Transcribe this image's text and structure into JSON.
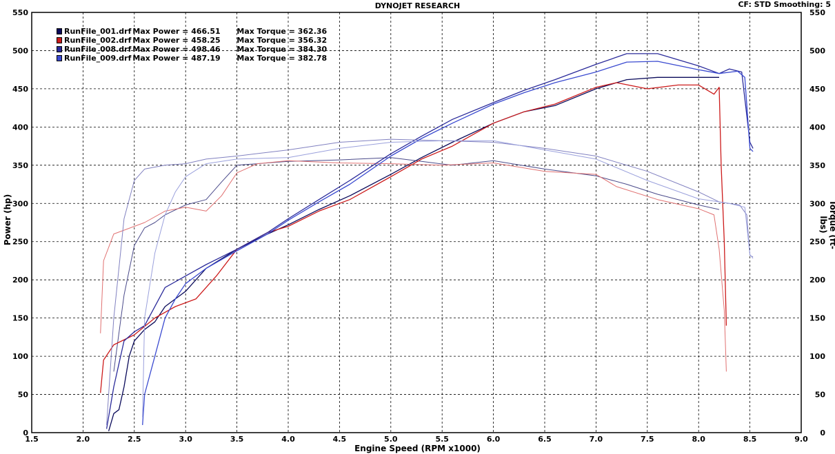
{
  "header": {
    "title": "DYNOJET RESEARCH",
    "cf_label": "CF: STD  Smoothing: 5"
  },
  "legend": [
    {
      "name": "RunFile_001.drf",
      "power": "Max Power = 466.51",
      "torque": "Max Torque = 362.36",
      "color": "#0a0a5a"
    },
    {
      "name": "RunFile_002.drf",
      "power": "Max Power = 458.25",
      "torque": "Max Torque = 356.32",
      "color": "#cc1a1a"
    },
    {
      "name": "RunFile_008.drf",
      "power": "Max Power = 498.46",
      "torque": "Max Torque = 384.30",
      "color": "#2a2a9a"
    },
    {
      "name": "RunFile_009.drf",
      "power": "Max Power = 487.19",
      "torque": "Max Torque = 382.78",
      "color": "#3a4ad0"
    }
  ],
  "chart_data": {
    "type": "line",
    "title": "DYNOJET RESEARCH",
    "xlabel": "Engine Speed (RPM x1000)",
    "ylabel": "Power (hp)",
    "y2label": "Torque (ft-lbs)",
    "xlim": [
      1.5,
      9.0
    ],
    "ylim": [
      0,
      550
    ],
    "x_ticks": [
      "1.5",
      "2.0",
      "2.5",
      "3.0",
      "3.5",
      "4.0",
      "4.5",
      "5.0",
      "5.5",
      "6.0",
      "6.5",
      "7.0",
      "7.5",
      "8.0",
      "8.5",
      "9.0"
    ],
    "y_ticks": [
      "0",
      "50",
      "100",
      "150",
      "200",
      "250",
      "300",
      "350",
      "400",
      "450",
      "500",
      "550"
    ],
    "grid": true,
    "legend_position": "top-left",
    "series": [
      {
        "name": "RunFile_001.drf",
        "kind": "power",
        "color": "#0a0a5a",
        "points": [
          [
            2.25,
            2
          ],
          [
            2.3,
            25
          ],
          [
            2.35,
            30
          ],
          [
            2.4,
            60
          ],
          [
            2.45,
            100
          ],
          [
            2.5,
            120
          ],
          [
            2.6,
            135
          ],
          [
            2.7,
            145
          ],
          [
            2.8,
            165
          ],
          [
            2.9,
            175
          ],
          [
            3.0,
            185
          ],
          [
            3.2,
            215
          ],
          [
            3.5,
            240
          ],
          [
            3.8,
            260
          ],
          [
            4.0,
            272
          ],
          [
            4.3,
            292
          ],
          [
            4.6,
            310
          ],
          [
            5.0,
            338
          ],
          [
            5.3,
            360
          ],
          [
            5.6,
            380
          ],
          [
            6.0,
            405
          ],
          [
            6.3,
            420
          ],
          [
            6.6,
            428
          ],
          [
            7.0,
            450
          ],
          [
            7.3,
            462
          ],
          [
            7.6,
            465
          ],
          [
            8.0,
            465
          ],
          [
            8.2,
            465
          ]
        ]
      },
      {
        "name": "RunFile_001.drf",
        "kind": "torque",
        "color": "#4a4a8a",
        "points": [
          [
            2.3,
            80
          ],
          [
            2.4,
            180
          ],
          [
            2.5,
            245
          ],
          [
            2.6,
            268
          ],
          [
            2.7,
            275
          ],
          [
            2.8,
            285
          ],
          [
            3.0,
            298
          ],
          [
            3.2,
            305
          ],
          [
            3.35,
            328
          ],
          [
            3.5,
            350
          ],
          [
            4.0,
            355
          ],
          [
            4.5,
            357
          ],
          [
            5.0,
            360
          ],
          [
            5.3,
            355
          ],
          [
            5.6,
            350
          ],
          [
            6.0,
            356
          ],
          [
            6.5,
            345
          ],
          [
            7.0,
            336
          ],
          [
            7.3,
            325
          ],
          [
            7.6,
            312
          ],
          [
            8.0,
            298
          ],
          [
            8.2,
            292
          ]
        ]
      },
      {
        "name": "RunFile_002.drf",
        "kind": "power",
        "color": "#cc1a1a",
        "points": [
          [
            2.17,
            52
          ],
          [
            2.2,
            95
          ],
          [
            2.3,
            115
          ],
          [
            2.5,
            128
          ],
          [
            2.7,
            150
          ],
          [
            2.9,
            165
          ],
          [
            3.1,
            175
          ],
          [
            3.3,
            205
          ],
          [
            3.5,
            240
          ],
          [
            3.8,
            262
          ],
          [
            4.0,
            270
          ],
          [
            4.3,
            290
          ],
          [
            4.6,
            305
          ],
          [
            5.0,
            335
          ],
          [
            5.3,
            358
          ],
          [
            5.6,
            375
          ],
          [
            6.0,
            405
          ],
          [
            6.3,
            420
          ],
          [
            6.6,
            430
          ],
          [
            7.0,
            452
          ],
          [
            7.2,
            458
          ],
          [
            7.5,
            450
          ],
          [
            7.8,
            455
          ],
          [
            8.0,
            455
          ],
          [
            8.15,
            443
          ],
          [
            8.2,
            452
          ],
          [
            8.22,
            350
          ],
          [
            8.25,
            250
          ],
          [
            8.27,
            140
          ]
        ]
      },
      {
        "name": "RunFile_002.drf",
        "kind": "torque",
        "color": "#e07070",
        "points": [
          [
            2.17,
            130
          ],
          [
            2.2,
            225
          ],
          [
            2.3,
            260
          ],
          [
            2.4,
            265
          ],
          [
            2.6,
            275
          ],
          [
            2.8,
            290
          ],
          [
            3.0,
            295
          ],
          [
            3.2,
            290
          ],
          [
            3.35,
            310
          ],
          [
            3.5,
            340
          ],
          [
            3.7,
            352
          ],
          [
            4.0,
            356
          ],
          [
            4.5,
            353
          ],
          [
            5.0,
            352
          ],
          [
            5.5,
            350
          ],
          [
            6.0,
            353
          ],
          [
            6.5,
            342
          ],
          [
            7.0,
            338
          ],
          [
            7.2,
            322
          ],
          [
            7.6,
            305
          ],
          [
            8.0,
            293
          ],
          [
            8.15,
            285
          ],
          [
            8.2,
            240
          ],
          [
            8.25,
            160
          ],
          [
            8.27,
            80
          ]
        ]
      },
      {
        "name": "RunFile_008.drf",
        "kind": "power",
        "color": "#2a2a9a",
        "points": [
          [
            2.23,
            5
          ],
          [
            2.3,
            60
          ],
          [
            2.4,
            120
          ],
          [
            2.5,
            132
          ],
          [
            2.6,
            140
          ],
          [
            2.8,
            190
          ],
          [
            3.0,
            205
          ],
          [
            3.2,
            220
          ],
          [
            3.5,
            240
          ],
          [
            3.8,
            262
          ],
          [
            4.0,
            280
          ],
          [
            4.3,
            305
          ],
          [
            4.6,
            330
          ],
          [
            5.0,
            365
          ],
          [
            5.3,
            388
          ],
          [
            5.6,
            410
          ],
          [
            6.0,
            432
          ],
          [
            6.3,
            448
          ],
          [
            6.6,
            462
          ],
          [
            7.0,
            482
          ],
          [
            7.3,
            496
          ],
          [
            7.6,
            496
          ],
          [
            8.0,
            480
          ],
          [
            8.2,
            470
          ],
          [
            8.3,
            476
          ],
          [
            8.42,
            472
          ],
          [
            8.5,
            380
          ],
          [
            8.53,
            372
          ]
        ]
      },
      {
        "name": "RunFile_008.drf",
        "kind": "torque",
        "color": "#8080c0",
        "points": [
          [
            2.23,
            10
          ],
          [
            2.3,
            150
          ],
          [
            2.4,
            280
          ],
          [
            2.5,
            330
          ],
          [
            2.6,
            345
          ],
          [
            2.8,
            350
          ],
          [
            3.0,
            352
          ],
          [
            3.2,
            358
          ],
          [
            3.5,
            362
          ],
          [
            4.0,
            370
          ],
          [
            4.5,
            380
          ],
          [
            5.0,
            384
          ],
          [
            5.5,
            382
          ],
          [
            6.0,
            380
          ],
          [
            6.5,
            372
          ],
          [
            7.0,
            362
          ],
          [
            7.5,
            342
          ],
          [
            8.0,
            315
          ],
          [
            8.2,
            302
          ],
          [
            8.4,
            298
          ],
          [
            8.47,
            285
          ],
          [
            8.5,
            232
          ],
          [
            8.53,
            230
          ]
        ]
      },
      {
        "name": "RunFile_009.drf",
        "kind": "power",
        "color": "#3a4ad0",
        "points": [
          [
            2.58,
            10
          ],
          [
            2.6,
            50
          ],
          [
            2.7,
            100
          ],
          [
            2.8,
            150
          ],
          [
            2.9,
            175
          ],
          [
            3.0,
            195
          ],
          [
            3.2,
            215
          ],
          [
            3.5,
            238
          ],
          [
            3.8,
            260
          ],
          [
            4.0,
            278
          ],
          [
            4.3,
            302
          ],
          [
            4.6,
            325
          ],
          [
            5.0,
            362
          ],
          [
            5.3,
            385
          ],
          [
            5.6,
            405
          ],
          [
            6.0,
            430
          ],
          [
            6.3,
            445
          ],
          [
            6.6,
            458
          ],
          [
            7.0,
            472
          ],
          [
            7.3,
            485
          ],
          [
            7.6,
            486
          ],
          [
            8.0,
            475
          ],
          [
            8.2,
            470
          ],
          [
            8.38,
            473
          ],
          [
            8.45,
            465
          ],
          [
            8.5,
            372
          ],
          [
            8.53,
            368
          ]
        ]
      },
      {
        "name": "RunFile_009.drf",
        "kind": "torque",
        "color": "#9aa0dc",
        "points": [
          [
            2.58,
            20
          ],
          [
            2.6,
            150
          ],
          [
            2.7,
            235
          ],
          [
            2.8,
            285
          ],
          [
            2.9,
            315
          ],
          [
            3.0,
            335
          ],
          [
            3.2,
            352
          ],
          [
            3.5,
            358
          ],
          [
            4.0,
            360
          ],
          [
            4.5,
            372
          ],
          [
            5.0,
            380
          ],
          [
            5.5,
            382
          ],
          [
            6.0,
            382
          ],
          [
            6.5,
            370
          ],
          [
            7.0,
            358
          ],
          [
            7.5,
            330
          ],
          [
            8.0,
            306
          ],
          [
            8.3,
            300
          ],
          [
            8.45,
            295
          ],
          [
            8.5,
            233
          ],
          [
            8.53,
            228
          ]
        ]
      }
    ]
  }
}
